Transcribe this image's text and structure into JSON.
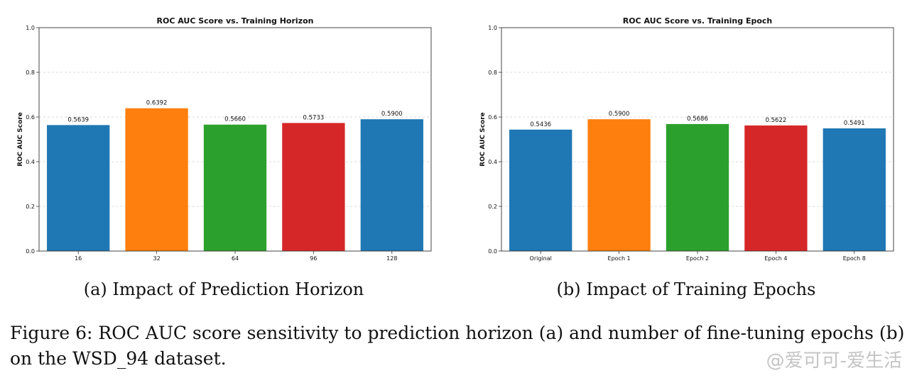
{
  "chart_data": [
    {
      "type": "bar",
      "title": "ROC AUC Score vs. Training Horizon",
      "ylabel": "ROC AUC Score",
      "xlabel": "",
      "ylim": [
        0,
        1.0
      ],
      "yticks": [
        "0.0",
        "0.2",
        "0.4",
        "0.6",
        "0.8",
        "1.0"
      ],
      "categories": [
        "16",
        "32",
        "64",
        "96",
        "128"
      ],
      "values": [
        0.5639,
        0.6392,
        0.566,
        0.5733,
        0.59
      ],
      "value_labels": [
        "0.5639",
        "0.6392",
        "0.5660",
        "0.5733",
        "0.5900"
      ],
      "colors": [
        "#1f77b4",
        "#ff7f0e",
        "#2ca02c",
        "#d62728",
        "#1f77b4"
      ],
      "grid": "horizontal dashed",
      "subcaption": "(a) Impact of Prediction Horizon"
    },
    {
      "type": "bar",
      "title": "ROC AUC Score vs. Training Epoch",
      "ylabel": "ROC AUC Score",
      "xlabel": "",
      "ylim": [
        0,
        1.0
      ],
      "yticks": [
        "0.0",
        "0.2",
        "0.4",
        "0.6",
        "0.8",
        "1.0"
      ],
      "categories": [
        "Original",
        "Epoch 1",
        "Epoch 2",
        "Epoch 4",
        "Epoch 8"
      ],
      "values": [
        0.5436,
        0.59,
        0.5686,
        0.5622,
        0.5491
      ],
      "value_labels": [
        "0.5436",
        "0.5900",
        "0.5686",
        "0.5622",
        "0.5491"
      ],
      "colors": [
        "#1f77b4",
        "#ff7f0e",
        "#2ca02c",
        "#d62728",
        "#1f77b4"
      ],
      "grid": "horizontal dashed",
      "subcaption": "(b) Impact of Training Epochs"
    }
  ],
  "caption": "Figure 6: ROC AUC score sensitivity to prediction horizon (a) and number of fine-tuning epochs (b) on the WSD_94 dataset.",
  "watermark": "@爱可可-爱生活"
}
